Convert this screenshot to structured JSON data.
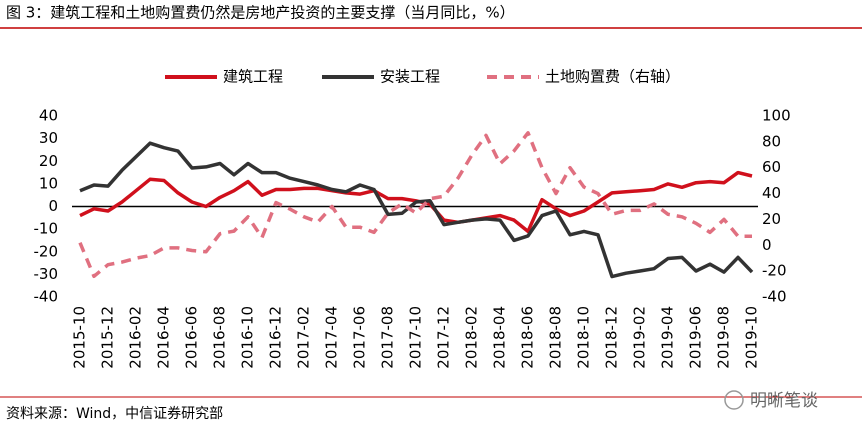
{
  "chart_data": {
    "type": "line",
    "title": "图 3：建筑工程和土地购置费仍然是房地产投资的主要支撑（当月同比，%）",
    "source": "资料来源：Wind，中信证券研究部",
    "watermark": "明晰笔谈",
    "categories": [
      "2015-10",
      null,
      "2015-12",
      null,
      "2016-02",
      null,
      "2016-04",
      null,
      "2016-06",
      null,
      "2016-08",
      null,
      "2016-10",
      null,
      "2016-12",
      null,
      "2017-02",
      null,
      "2017-04",
      null,
      "2017-06",
      null,
      "2017-08",
      null,
      "2017-10",
      null,
      "2017-12",
      null,
      "2018-02",
      null,
      "2018-04",
      null,
      "2018-06",
      null,
      "2018-08",
      null,
      "2018-10",
      null,
      "2018-12",
      null,
      "2019-02",
      null,
      "2019-04",
      null,
      "2019-06",
      null,
      "2019-08",
      null,
      "2019-10"
    ],
    "series": [
      {
        "name": "建筑工程",
        "color": "#d0101c",
        "dashed": false,
        "values": [
          -4,
          -1,
          -2,
          2,
          7,
          12,
          11.5,
          6,
          2,
          0,
          4,
          7,
          11,
          5,
          7.5,
          7.5,
          8,
          8,
          7,
          6,
          5.5,
          7,
          3.5,
          3.5,
          2.5,
          1,
          -6,
          -7,
          -6,
          -5,
          -4,
          -6,
          -11,
          3,
          -1,
          -4,
          -2,
          2,
          6,
          6.5,
          7,
          7.5,
          10,
          8.5,
          10.5,
          11,
          10.5,
          15,
          13.5
        ]
      },
      {
        "name": "安装工程",
        "color": "#333333",
        "dashed": false,
        "values": [
          7,
          9.5,
          9,
          16,
          22,
          28,
          26,
          24.5,
          17,
          17.5,
          19,
          14,
          19,
          15,
          15,
          12.5,
          11,
          9.5,
          7.5,
          6.5,
          9.5,
          7.5,
          -3.5,
          -3,
          2,
          2.5,
          -8,
          -7,
          -6,
          -5.5,
          -6,
          -15,
          -13,
          -4,
          -2,
          -12.5,
          -11,
          -12.5,
          -31,
          -29.5,
          -28.5,
          -27.5,
          -23,
          -22.5,
          -28.5,
          -25.5,
          -29,
          -22.5,
          -29
        ]
      },
      {
        "name": "土地购置费（右轴）",
        "color": "#e07080",
        "dashed": true,
        "axis": "y2",
        "values": [
          2,
          -24,
          -15,
          -13,
          -10,
          -8,
          -2,
          -2,
          -4,
          -5,
          9,
          11,
          22,
          6,
          33,
          28,
          22,
          18,
          30,
          14,
          14,
          10,
          25,
          32,
          25,
          36,
          38,
          52,
          70,
          85,
          63,
          73,
          87,
          60,
          40,
          60,
          45,
          40,
          24,
          27,
          27,
          32,
          24,
          22,
          17,
          10,
          20,
          7,
          7
        ]
      }
    ],
    "ylim": [
      -40,
      40
    ],
    "yticks": [
      -40,
      -30,
      -20,
      -10,
      0,
      10,
      20,
      30,
      40
    ],
    "y2lim": [
      -40,
      100
    ],
    "y2ticks": [
      -40,
      -20,
      0,
      20,
      40,
      60,
      80,
      100
    ]
  }
}
